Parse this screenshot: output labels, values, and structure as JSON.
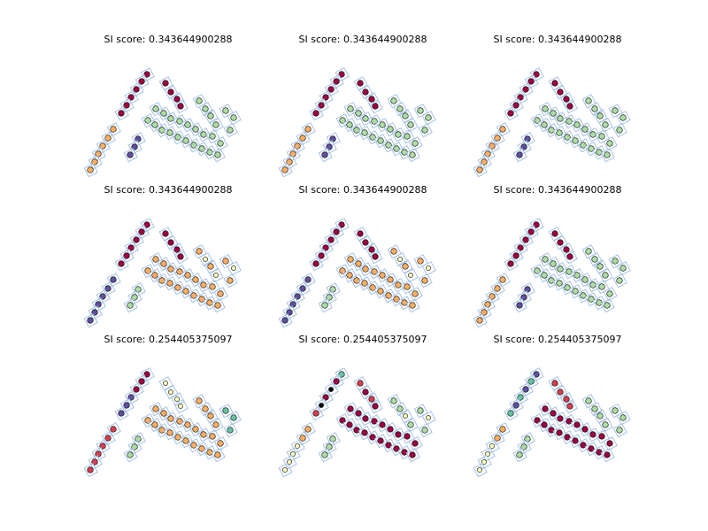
{
  "chart_data": [
    {
      "type": "scatter",
      "title": "SI score: 0.343644900288",
      "scheme": "A"
    },
    {
      "type": "scatter",
      "title": "SI score: 0.343644900288",
      "scheme": "A"
    },
    {
      "type": "scatter",
      "title": "SI score: 0.343644900288",
      "scheme": "A"
    },
    {
      "type": "scatter",
      "title": "SI score: 0.343644900288",
      "scheme": "B"
    },
    {
      "type": "scatter",
      "title": "SI score: 0.343644900288",
      "scheme": "B"
    },
    {
      "type": "scatter",
      "title": "SI score: 0.343644900288",
      "scheme": "A"
    },
    {
      "type": "scatter",
      "title": "SI score: 0.254405375097",
      "scheme": "C"
    },
    {
      "type": "scatter",
      "title": "SI score: 0.254405375097",
      "scheme": "D"
    },
    {
      "type": "scatter",
      "title": "SI score: 0.254405375097",
      "scheme": "E"
    }
  ],
  "colors": {
    "crimson": "#9e0142",
    "red": "#d53e4f",
    "orange": "#fdae61",
    "light_yellow": "#ffffbf",
    "light_green": "#abdda4",
    "teal": "#66c2a5",
    "indigo": "#5e4fa2",
    "black": "#000000",
    "rect_stroke": "#a6c3e6",
    "point_stroke": "#000000"
  }
}
